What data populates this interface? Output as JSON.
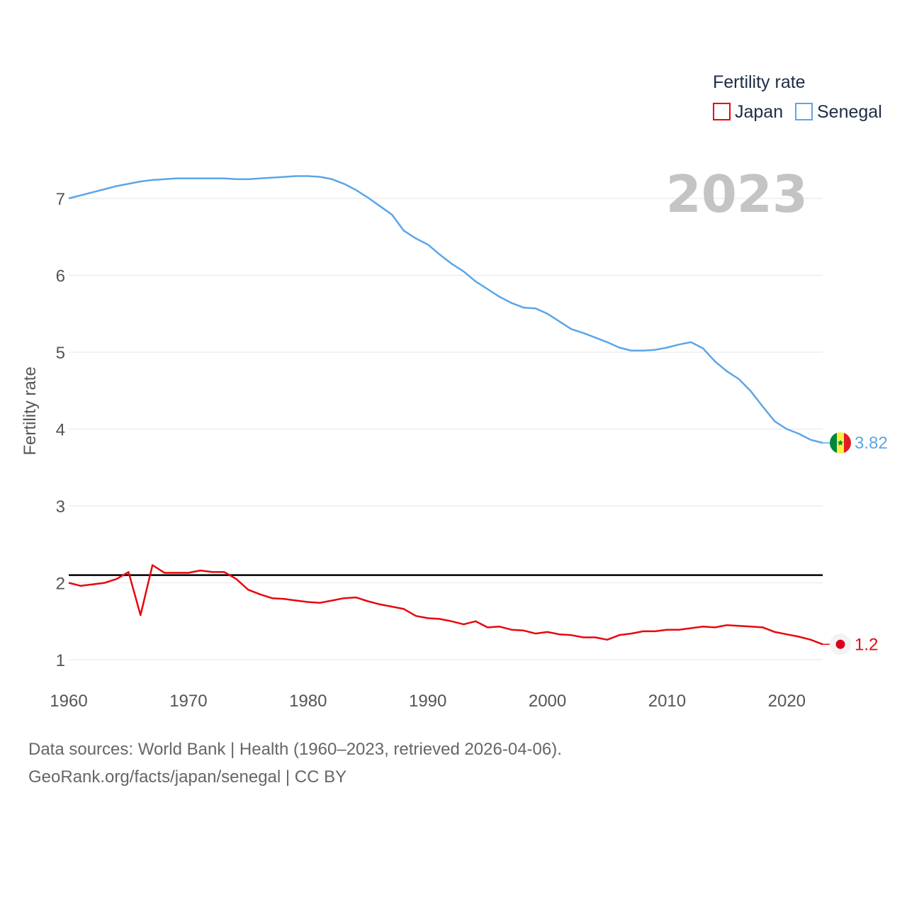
{
  "chart_data": {
    "type": "line",
    "title": "Fertility rate",
    "ylabel": "Fertility rate",
    "xlabel": "",
    "year_display": "2023",
    "xlim": [
      1960,
      2023
    ],
    "ylim": [
      1,
      7
    ],
    "yticks": [
      1,
      2,
      3,
      4,
      5,
      6,
      7
    ],
    "xticks": [
      1960,
      1970,
      1980,
      1990,
      2000,
      2010,
      2020
    ],
    "reference_line": 2.1,
    "x": [
      1960,
      1961,
      1962,
      1963,
      1964,
      1965,
      1966,
      1967,
      1968,
      1969,
      1970,
      1971,
      1972,
      1973,
      1974,
      1975,
      1976,
      1977,
      1978,
      1979,
      1980,
      1981,
      1982,
      1983,
      1984,
      1985,
      1986,
      1987,
      1988,
      1989,
      1990,
      1991,
      1992,
      1993,
      1994,
      1995,
      1996,
      1997,
      1998,
      1999,
      2000,
      2001,
      2002,
      2003,
      2004,
      2005,
      2006,
      2007,
      2008,
      2009,
      2010,
      2011,
      2012,
      2013,
      2014,
      2015,
      2016,
      2017,
      2018,
      2019,
      2020,
      2021,
      2022,
      2023
    ],
    "series": [
      {
        "name": "Japan",
        "color": "#e8070e",
        "end_label": "1.2",
        "values": [
          2.0,
          1.96,
          1.98,
          2.0,
          2.05,
          2.14,
          1.58,
          2.23,
          2.13,
          2.13,
          2.13,
          2.16,
          2.14,
          2.14,
          2.05,
          1.91,
          1.85,
          1.8,
          1.79,
          1.77,
          1.75,
          1.74,
          1.77,
          1.8,
          1.81,
          1.76,
          1.72,
          1.69,
          1.66,
          1.57,
          1.54,
          1.53,
          1.5,
          1.46,
          1.5,
          1.42,
          1.43,
          1.39,
          1.38,
          1.34,
          1.36,
          1.33,
          1.32,
          1.29,
          1.29,
          1.26,
          1.32,
          1.34,
          1.37,
          1.37,
          1.39,
          1.39,
          1.41,
          1.43,
          1.42,
          1.45,
          1.44,
          1.43,
          1.42,
          1.36,
          1.33,
          1.3,
          1.26,
          1.2
        ]
      },
      {
        "name": "Senegal",
        "color": "#5ba6e8",
        "end_label": "3.82",
        "values": [
          7.0,
          7.04,
          7.08,
          7.12,
          7.16,
          7.19,
          7.22,
          7.24,
          7.25,
          7.26,
          7.26,
          7.26,
          7.26,
          7.26,
          7.25,
          7.25,
          7.26,
          7.27,
          7.28,
          7.29,
          7.29,
          7.28,
          7.25,
          7.19,
          7.11,
          7.01,
          6.9,
          6.79,
          6.58,
          6.48,
          6.4,
          6.27,
          6.15,
          6.05,
          5.92,
          5.82,
          5.72,
          5.64,
          5.58,
          5.57,
          5.5,
          5.4,
          5.3,
          5.25,
          5.19,
          5.13,
          5.06,
          5.02,
          5.02,
          5.03,
          5.06,
          5.1,
          5.13,
          5.05,
          4.88,
          4.75,
          4.65,
          4.49,
          4.29,
          4.1,
          4.0,
          3.94,
          3.86,
          3.82
        ]
      }
    ]
  },
  "footer": {
    "line1": "Data sources: World Bank | Health (1960–2023, retrieved 2026-04-06).",
    "line2": "GeoRank.org/facts/japan/senegal | CC BY"
  }
}
